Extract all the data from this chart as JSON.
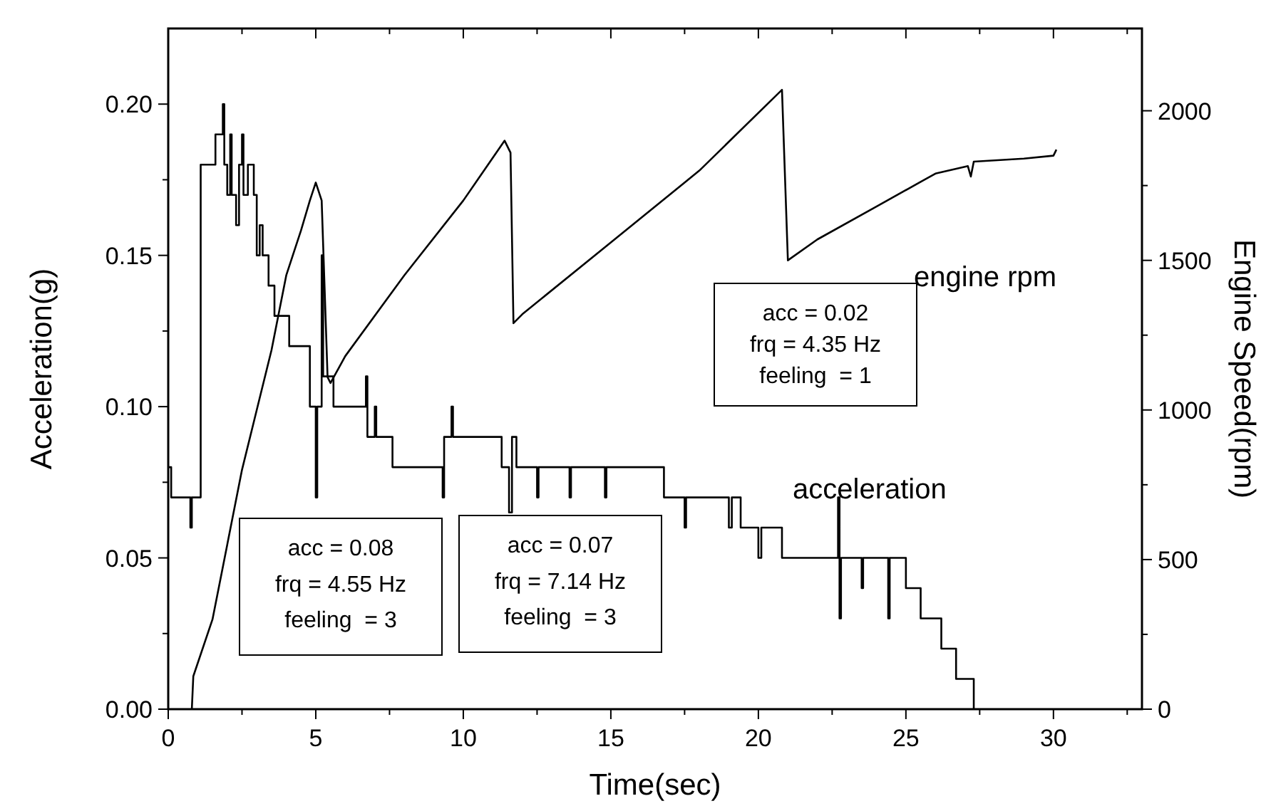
{
  "chart_data": {
    "type": "line",
    "xlabel": "Time(sec)",
    "ylabel": "Acceleration(g)",
    "y2label": "Engine Speed(rpm)",
    "xlim": [
      0,
      33
    ],
    "ylim": [
      0,
      0.225
    ],
    "y2lim": [
      0,
      2275
    ],
    "xticks": [
      0,
      {
        "value": 2.5,
        "label": null
      },
      5,
      {
        "value": 7.5,
        "label": null
      },
      10,
      {
        "value": 12.5,
        "label": null
      },
      15,
      {
        "value": 17.5,
        "label": null
      },
      20,
      {
        "value": 22.5,
        "label": null
      },
      25,
      {
        "value": 27.5,
        "label": null
      },
      30,
      {
        "value": 32.5,
        "label": null
      }
    ],
    "yticks": [
      {
        "value": 0,
        "label": "0.00"
      },
      {
        "value": 0.025,
        "label": null
      },
      {
        "value": 0.05,
        "label": "0.05"
      },
      {
        "value": 0.075,
        "label": null
      },
      {
        "value": 0.1,
        "label": "0.10"
      },
      {
        "value": 0.125,
        "label": null
      },
      {
        "value": 0.15,
        "label": "0.15"
      },
      {
        "value": 0.175,
        "label": null
      },
      {
        "value": 0.2,
        "label": "0.20"
      }
    ],
    "y2ticks": [
      0,
      {
        "value": 250,
        "label": null
      },
      500,
      {
        "value": 750,
        "label": null
      },
      1000,
      {
        "value": 1250,
        "label": null
      },
      1500,
      {
        "value": 1750,
        "label": null
      },
      2000
    ],
    "annotations": [
      "acc = 0.08\nfrq = 4.55 Hz\nfeeling  = 3",
      "acc = 0.07\nfrq = 7.14 Hz\nfeeling  = 3",
      "acc = 0.02\nfrq = 4.35 Hz\nfeeling  = 1"
    ],
    "series": [
      {
        "name": "acceleration",
        "type": "step",
        "color": "#000000",
        "x": [
          0,
          0.1,
          0.75,
          0.8,
          1.1,
          1.6,
          1.85,
          1.9,
          2.0,
          2.1,
          2.15,
          2.3,
          2.4,
          2.5,
          2.55,
          2.7,
          2.9,
          3.0,
          3.1,
          3.2,
          3.4,
          3.6,
          4.1,
          4.8,
          5.0,
          5.05,
          5.2,
          5.25,
          5.6,
          6.7,
          6.75,
          7.0,
          7.05,
          7.6,
          9.3,
          9.35,
          9.6,
          9.65,
          11.3,
          11.55,
          11.65,
          11.8,
          12.5,
          12.55,
          13.6,
          13.65,
          14.8,
          14.85,
          16.8,
          17.5,
          17.55,
          19.0,
          19.1,
          19.4,
          20.0,
          20.1,
          20.8,
          22.7,
          22.75,
          22.8,
          23.5,
          23.55,
          24.4,
          24.45,
          25.0,
          25.5,
          26.2,
          26.7,
          27.3
        ],
        "values": [
          0.08,
          0.07,
          0.06,
          0.07,
          0.18,
          0.19,
          0.2,
          0.18,
          0.17,
          0.19,
          0.17,
          0.16,
          0.18,
          0.19,
          0.17,
          0.18,
          0.17,
          0.15,
          0.16,
          0.15,
          0.14,
          0.13,
          0.12,
          0.1,
          0.07,
          0.1,
          0.15,
          0.11,
          0.1,
          0.11,
          0.09,
          0.1,
          0.09,
          0.08,
          0.07,
          0.09,
          0.1,
          0.09,
          0.08,
          0.065,
          0.09,
          0.08,
          0.07,
          0.08,
          0.07,
          0.08,
          0.07,
          0.08,
          0.07,
          0.06,
          0.07,
          0.06,
          0.07,
          0.06,
          0.05,
          0.06,
          0.05,
          0.07,
          0.03,
          0.05,
          0.04,
          0.05,
          0.03,
          0.05,
          0.04,
          0.03,
          0.02,
          0.01,
          0
        ]
      },
      {
        "name": "engine rpm",
        "axis": "y2",
        "color": "#000000",
        "x": [
          0.8,
          0.85,
          1.5,
          2,
          2.5,
          3,
          3.5,
          4,
          4.5,
          4.8,
          5.0,
          5.2,
          5.4,
          5.5,
          6,
          8,
          10,
          11.4,
          11.6,
          11.7,
          12,
          15,
          18,
          20.8,
          21,
          22,
          24,
          26,
          27.1,
          27.2,
          27.3,
          29,
          30,
          30.1
        ],
        "values": [
          0,
          110,
          300,
          550,
          800,
          1000,
          1200,
          1450,
          1600,
          1700,
          1760,
          1700,
          1110,
          1090,
          1180,
          1450,
          1700,
          1900,
          1860,
          1290,
          1320,
          1560,
          1800,
          2070,
          1500,
          1570,
          1680,
          1790,
          1815,
          1780,
          1830,
          1840,
          1850,
          1870
        ]
      }
    ]
  }
}
